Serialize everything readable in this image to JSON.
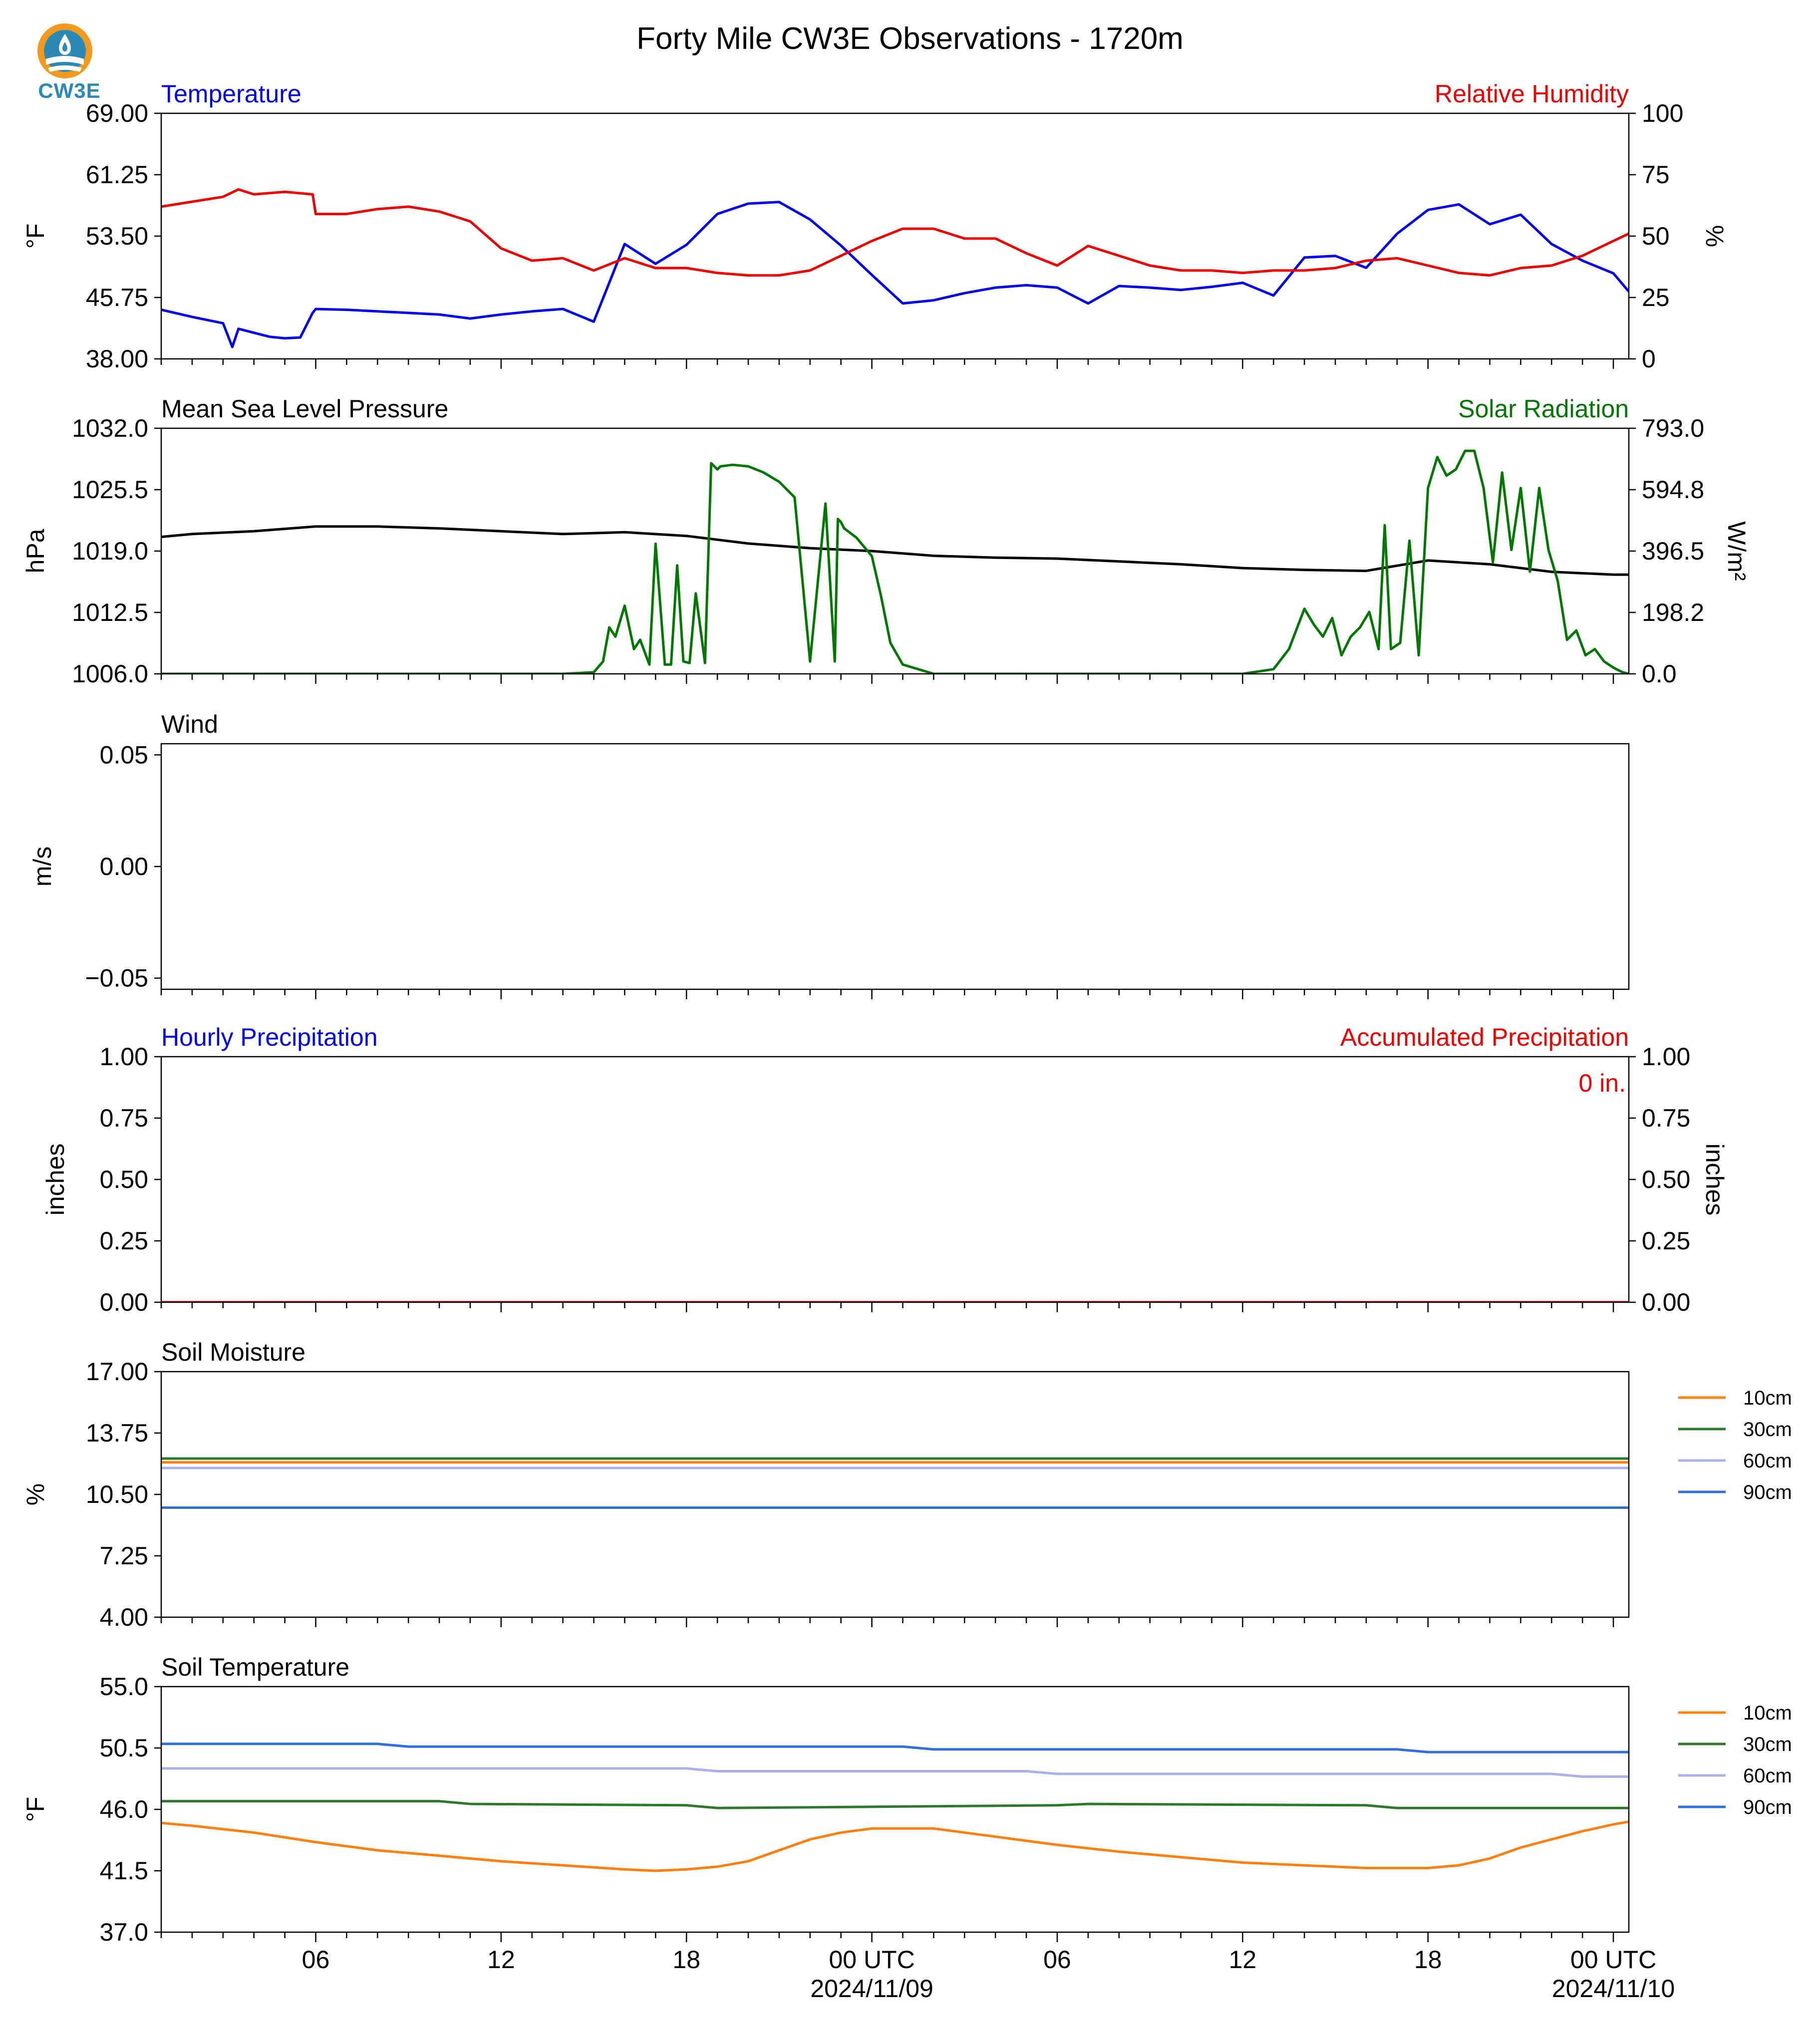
{
  "title": "Forty Mile CW3E Observations - 1720m",
  "logo": {
    "text": "CW3E",
    "icon": "water-drop-globe-icon"
  },
  "colors": {
    "blue": "#0000ee",
    "red": "#ee0000",
    "green": "#007700",
    "black": "#000000",
    "soil_10": "#ff7f0e",
    "soil_30": "#2a7a2a",
    "soil_60": "#a8b0f0",
    "soil_90": "#2f6fe0"
  },
  "x_axis": {
    "tick_labels": [
      "06",
      "12",
      "18",
      "00 UTC",
      "06",
      "12",
      "18",
      "00 UTC"
    ],
    "tick_hours": [
      6,
      12,
      18,
      24,
      30,
      36,
      42,
      48
    ],
    "date_labels": [
      "2024/11/09",
      "2024/11/10"
    ],
    "range_hours": [
      1,
      48.5
    ]
  },
  "chart_data": [
    {
      "type": "line",
      "panel": "temperature_rh",
      "title_left": "Temperature",
      "title_right": "Relative Humidity",
      "ylabel_left": "°F",
      "ylabel_right": "%",
      "yticks_left": [
        "69.00",
        "61.25",
        "53.50",
        "45.75",
        "38.00"
      ],
      "yticks_right": [
        "100",
        "75",
        "50",
        "25",
        "0"
      ],
      "ylim_left": [
        38,
        69
      ],
      "ylim_right": [
        0,
        100
      ],
      "series": [
        {
          "name": "Temperature",
          "axis": "left",
          "color": "#0000ee",
          "x": [
            1,
            2,
            3,
            3.3,
            3.5,
            4.5,
            5,
            5.5,
            5.9,
            6,
            7,
            8,
            9,
            10,
            11,
            12,
            13,
            14,
            15,
            16,
            17,
            18,
            19,
            20,
            21,
            22,
            23,
            24,
            25,
            26,
            27,
            28,
            29,
            30,
            31,
            32,
            33,
            34,
            35,
            36,
            37,
            38,
            39,
            40,
            41,
            42,
            43,
            44,
            45,
            46,
            47,
            48,
            48.5
          ],
          "y": [
            44.2,
            43.3,
            42.5,
            39.5,
            41.8,
            40.8,
            40.6,
            40.7,
            43.8,
            44.3,
            44.2,
            44.0,
            43.8,
            43.6,
            43.1,
            43.6,
            44.0,
            44.3,
            42.7,
            52.5,
            50.0,
            52.4,
            56.3,
            57.6,
            57.8,
            55.6,
            52.3,
            48.6,
            45.0,
            45.4,
            46.3,
            47.0,
            47.3,
            47.0,
            45.0,
            47.2,
            47.0,
            46.7,
            47.1,
            47.6,
            46.0,
            50.8,
            51.0,
            49.5,
            53.8,
            56.8,
            57.5,
            55.0,
            56.2,
            52.5,
            50.4,
            48.8,
            46.5
          ]
        },
        {
          "name": "Relative Humidity",
          "axis": "right",
          "color": "#ee0000",
          "x": [
            1,
            2,
            3,
            3.5,
            4,
            5,
            5.9,
            6,
            7,
            8,
            9,
            10,
            11,
            12,
            13,
            14,
            15,
            16,
            17,
            18,
            19,
            20,
            21,
            22,
            23,
            24,
            25,
            26,
            27,
            28,
            29,
            30,
            31,
            32,
            33,
            34,
            35,
            36,
            37,
            38,
            39,
            40,
            41,
            42,
            43,
            44,
            45,
            46,
            47,
            48,
            48.5
          ],
          "y": [
            62,
            64,
            66,
            69,
            67,
            68,
            67,
            59,
            59,
            61,
            62,
            60,
            56,
            45,
            40,
            41,
            36,
            41,
            37,
            37,
            35,
            34,
            34,
            36,
            42,
            48,
            53,
            53,
            49,
            49,
            43,
            38,
            46,
            42,
            38,
            36,
            36,
            35,
            36,
            36,
            37,
            40,
            41,
            38,
            35,
            34,
            37,
            38,
            42,
            48,
            51
          ]
        }
      ]
    },
    {
      "type": "line",
      "panel": "pressure_solar",
      "title_left": "Mean Sea Level Pressure",
      "title_right": "Solar Radiation",
      "ylabel_left": "hPa",
      "ylabel_right": "W/m²",
      "yticks_left": [
        "1032.0",
        "1025.5",
        "1019.0",
        "1012.5",
        "1006.0"
      ],
      "yticks_right": [
        "793.0",
        "594.8",
        "396.5",
        "198.2",
        "0.0"
      ],
      "ylim_left": [
        1006,
        1032
      ],
      "ylim_right": [
        0,
        793
      ],
      "series": [
        {
          "name": "Mean Sea Level Pressure",
          "axis": "left",
          "color": "#000000",
          "x": [
            1,
            2,
            4,
            6,
            8,
            10,
            12,
            14,
            16,
            18,
            20,
            22,
            24,
            26,
            28,
            30,
            32,
            34,
            36,
            38,
            40,
            42,
            44,
            46,
            48,
            48.5
          ],
          "y": [
            1020.5,
            1020.8,
            1021.1,
            1021.6,
            1021.6,
            1021.4,
            1021.1,
            1020.8,
            1021.0,
            1020.6,
            1019.8,
            1019.3,
            1019.0,
            1018.5,
            1018.3,
            1018.2,
            1017.9,
            1017.6,
            1017.2,
            1017.0,
            1016.9,
            1018.0,
            1017.6,
            1016.8,
            1016.5,
            1016.5
          ]
        },
        {
          "name": "Solar Radiation",
          "axis": "right",
          "color": "#007700",
          "x": [
            1,
            14,
            15,
            15.3,
            15.5,
            15.7,
            16,
            16.3,
            16.5,
            16.8,
            17.0,
            17.3,
            17.5,
            17.7,
            17.9,
            18.1,
            18.3,
            18.6,
            18.8,
            19.0,
            19.1,
            19.5,
            20,
            20.5,
            21,
            21.5,
            22,
            22.5,
            22.8,
            22.9,
            23.0,
            23.1,
            23.5,
            24,
            24.3,
            24.6,
            25,
            26,
            36,
            37,
            37.5,
            38,
            38.3,
            38.6,
            38.9,
            39.2,
            39.5,
            39.8,
            40.1,
            40.4,
            40.6,
            40.8,
            41.1,
            41.4,
            41.7,
            42.0,
            42.3,
            42.6,
            42.9,
            43.2,
            43.5,
            43.8,
            44.1,
            44.4,
            44.7,
            45.0,
            45.3,
            45.6,
            45.9,
            46.2,
            46.5,
            46.8,
            47.1,
            47.4,
            47.7,
            48.0,
            48.3,
            48.5
          ],
          "y": [
            0,
            0,
            5,
            40,
            150,
            120,
            220,
            80,
            110,
            30,
            420,
            30,
            30,
            350,
            40,
            35,
            260,
            35,
            680,
            660,
            670,
            675,
            670,
            650,
            620,
            570,
            40,
            550,
            40,
            500,
            490,
            470,
            440,
            380,
            250,
            100,
            30,
            0,
            0,
            15,
            80,
            210,
            160,
            120,
            180,
            60,
            120,
            150,
            200,
            80,
            480,
            80,
            100,
            430,
            60,
            600,
            700,
            640,
            660,
            720,
            720,
            600,
            360,
            650,
            400,
            600,
            330,
            600,
            400,
            300,
            110,
            140,
            60,
            80,
            40,
            20,
            5,
            0
          ]
        }
      ]
    },
    {
      "type": "line",
      "panel": "wind",
      "title_left": "Wind",
      "ylabel_left": "m/s",
      "yticks_left": [
        "0.05",
        "0.00",
        "−0.05"
      ],
      "ylim_left": [
        -0.055,
        0.055
      ],
      "series": []
    },
    {
      "type": "bar",
      "panel": "precipitation",
      "title_left": "Hourly Precipitation",
      "title_right": "Accumulated Precipitation",
      "ylabel_left": "inches",
      "ylabel_right": "inches",
      "yticks_left": [
        "1.00",
        "0.75",
        "0.50",
        "0.25",
        "0.00"
      ],
      "yticks_right": [
        "1.00",
        "0.75",
        "0.50",
        "0.25",
        "0.00"
      ],
      "ylim_left": [
        0,
        1
      ],
      "ylim_right": [
        0,
        1
      ],
      "annotation": "0 in.",
      "series": [
        {
          "name": "Hourly Precipitation",
          "axis": "left",
          "color": "#0000ee",
          "x": [
            1,
            48.5
          ],
          "y": [
            0,
            0
          ]
        },
        {
          "name": "Accumulated Precipitation",
          "axis": "right",
          "color": "#ee0000",
          "x": [
            1,
            48.5
          ],
          "y": [
            0,
            0
          ]
        }
      ]
    },
    {
      "type": "line",
      "panel": "soil_moisture",
      "title_left": "Soil Moisture",
      "ylabel_left": "%",
      "yticks_left": [
        "17.00",
        "13.75",
        "10.50",
        "7.25",
        "4.00"
      ],
      "ylim_left": [
        4,
        17
      ],
      "legend_position": "right",
      "series": [
        {
          "name": "10cm",
          "axis": "left",
          "color": "#ff7f0e",
          "x": [
            1,
            48.5
          ],
          "y": [
            12.2,
            12.2
          ]
        },
        {
          "name": "30cm",
          "axis": "left",
          "color": "#2a7a2a",
          "x": [
            1,
            48.5
          ],
          "y": [
            12.4,
            12.4
          ]
        },
        {
          "name": "60cm",
          "axis": "left",
          "color": "#a8b0f0",
          "x": [
            1,
            48.5
          ],
          "y": [
            11.9,
            11.9
          ]
        },
        {
          "name": "90cm",
          "axis": "left",
          "color": "#2f6fe0",
          "x": [
            1,
            48.5
          ],
          "y": [
            9.8,
            9.8
          ]
        }
      ]
    },
    {
      "type": "line",
      "panel": "soil_temperature",
      "title_left": "Soil Temperature",
      "ylabel_left": "°F",
      "yticks_left": [
        "55.0",
        "50.5",
        "46.0",
        "41.5",
        "37.0"
      ],
      "ylim_left": [
        37,
        55
      ],
      "legend_position": "right",
      "series": [
        {
          "name": "10cm",
          "axis": "left",
          "color": "#ff7f0e",
          "x": [
            1,
            2,
            4,
            6,
            8,
            10,
            12,
            14,
            16,
            17,
            18,
            19,
            20,
            21,
            22,
            23,
            24,
            25,
            26,
            28,
            30,
            32,
            34,
            36,
            38,
            40,
            41,
            42,
            43,
            44,
            45,
            46,
            47,
            48,
            48.5
          ],
          "y": [
            45.0,
            44.8,
            44.3,
            43.6,
            43.0,
            42.6,
            42.2,
            41.9,
            41.6,
            41.5,
            41.6,
            41.8,
            42.2,
            43.0,
            43.8,
            44.3,
            44.6,
            44.6,
            44.6,
            44.0,
            43.4,
            42.9,
            42.5,
            42.1,
            41.9,
            41.7,
            41.7,
            41.7,
            41.9,
            42.4,
            43.2,
            43.8,
            44.4,
            44.9,
            45.1
          ]
        },
        {
          "name": "30cm",
          "axis": "left",
          "color": "#2a7a2a",
          "x": [
            1,
            10,
            11,
            18,
            19,
            30,
            31,
            40,
            41,
            48.5
          ],
          "y": [
            46.6,
            46.6,
            46.4,
            46.3,
            46.1,
            46.3,
            46.4,
            46.3,
            46.1,
            46.1
          ]
        },
        {
          "name": "60cm",
          "axis": "left",
          "color": "#a8b0f0",
          "x": [
            1,
            18,
            19,
            29,
            30,
            46,
            47,
            48.5
          ],
          "y": [
            49.0,
            49.0,
            48.8,
            48.8,
            48.6,
            48.6,
            48.4,
            48.4
          ]
        },
        {
          "name": "90cm",
          "axis": "left",
          "color": "#2f6fe0",
          "x": [
            1,
            8,
            9,
            25,
            26,
            41,
            42,
            48.5
          ],
          "y": [
            50.8,
            50.8,
            50.6,
            50.6,
            50.4,
            50.4,
            50.2,
            50.2
          ]
        }
      ]
    }
  ]
}
